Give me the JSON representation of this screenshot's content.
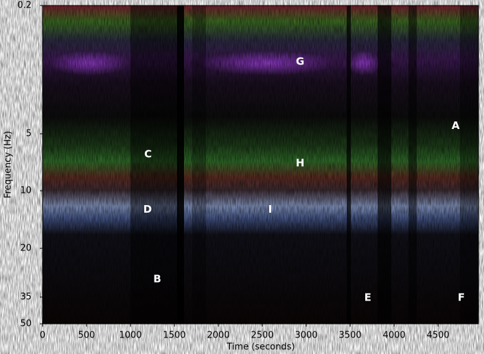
{
  "chart_data": {
    "type": "spectrogram",
    "x_label": "Time (seconds)",
    "y_label": "Frequency (Hz)",
    "xlim": [
      0,
      4960
    ],
    "xticks": [
      0,
      500,
      1000,
      1500,
      2000,
      2500,
      3000,
      3500,
      4000,
      4500
    ],
    "ylim": [
      0.2,
      50
    ],
    "yticks": [
      0.2,
      5,
      10,
      20,
      35,
      50
    ],
    "annotations": [
      {
        "text": "G",
        "x": 2930,
        "y": 2.3
      },
      {
        "text": "A",
        "x": 4700,
        "y": 4.7
      },
      {
        "text": "C",
        "x": 1200,
        "y": 6.8
      },
      {
        "text": "H",
        "x": 2930,
        "y": 7.6
      },
      {
        "text": "D",
        "x": 1195,
        "y": 13.3
      },
      {
        "text": "I",
        "x": 2590,
        "y": 13.3
      },
      {
        "text": "B",
        "x": 1305,
        "y": 29.5
      },
      {
        "text": "E",
        "x": 3700,
        "y": 35.3
      },
      {
        "text": "F",
        "x": 4765,
        "y": 35.3
      }
    ]
  }
}
